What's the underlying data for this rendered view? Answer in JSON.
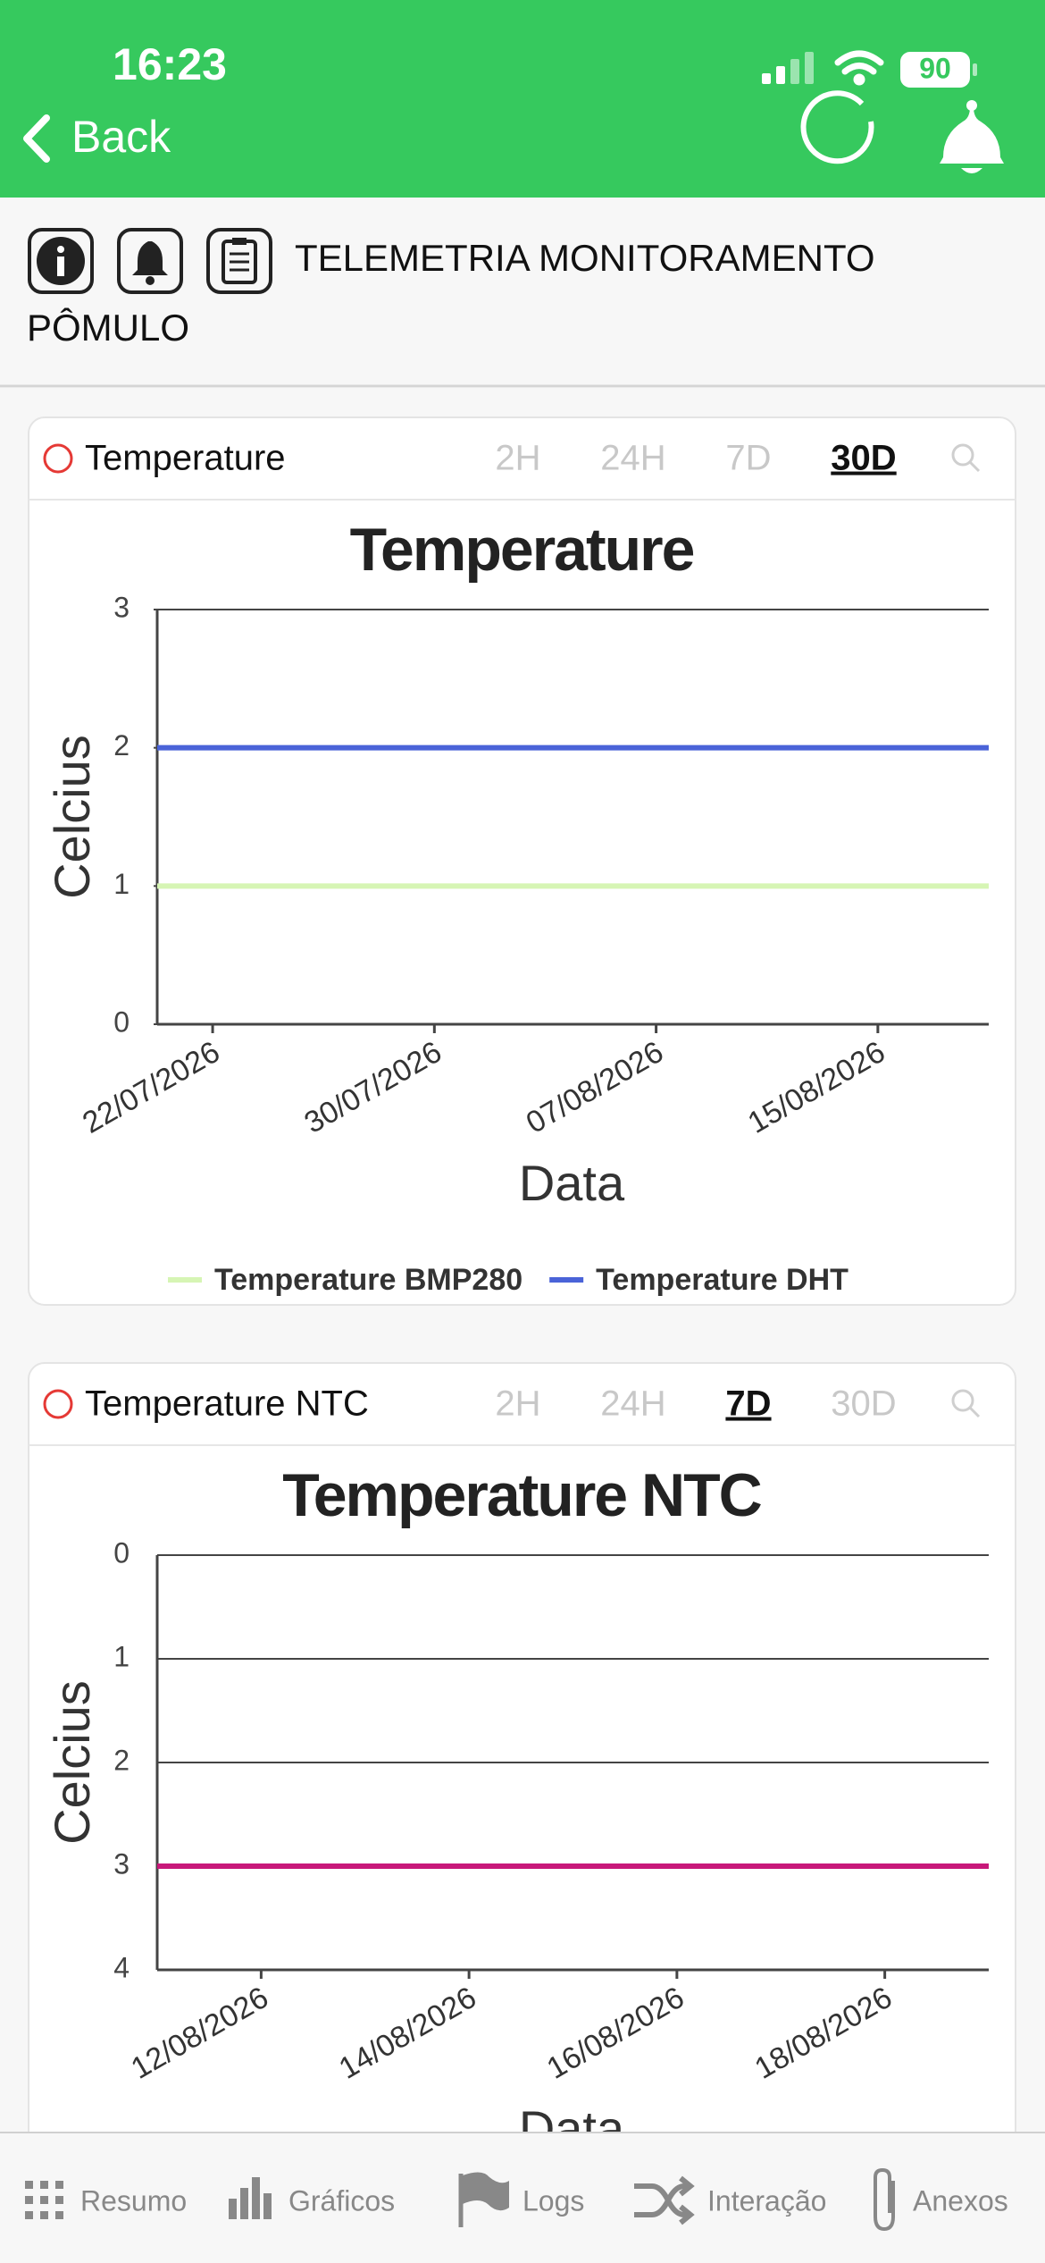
{
  "status_bar": {
    "time": "16:23",
    "battery": "90"
  },
  "nav": {
    "back": "Back"
  },
  "header": {
    "title": "TELEMETRIA MONITORAMENTO PÔMULO"
  },
  "cards": [
    {
      "label": "Temperature",
      "tabs": [
        "2H",
        "24H",
        "7D",
        "30D"
      ],
      "selected_tab": 3,
      "chart": {
        "type": "line",
        "title": "Temperature",
        "x_label": "Data",
        "y_label": "Celcius",
        "xlim": [
          "20/07/2026",
          "19/08/2026"
        ],
        "xticks": [
          "22/07/2026",
          "30/07/2026",
          "07/08/2026",
          "15/08/2026"
        ],
        "ylim": [
          0,
          3
        ],
        "yticks": [
          0,
          1,
          2,
          3
        ],
        "grid": false,
        "legend": "bottom",
        "series": [
          {
            "name": "Temperature BMP280",
            "color": "#d6f5b4",
            "x": [
              "20/07/2026",
              "19/08/2026"
            ],
            "values": [
              1,
              1
            ]
          },
          {
            "name": "Temperature DHT",
            "color": "#4a63d8",
            "x": [
              "20/07/2026",
              "19/08/2026"
            ],
            "values": [
              2,
              2
            ]
          }
        ]
      }
    },
    {
      "label": "Temperature NTC",
      "tabs": [
        "2H",
        "24H",
        "7D",
        "30D"
      ],
      "selected_tab": 2,
      "chart": {
        "type": "line",
        "title": "Temperature NTC",
        "x_label": "Data",
        "y_label": "Celcius",
        "xlim": [
          "11/08/2026",
          "19/08/2026"
        ],
        "xticks": [
          "12/08/2026",
          "14/08/2026",
          "16/08/2026",
          "18/08/2026"
        ],
        "ylim": [
          4,
          0
        ],
        "yticks": [
          0,
          1,
          2,
          3,
          4
        ],
        "grid": true,
        "series": [
          {
            "color": "#c8187a",
            "x": [
              "11/08/2026",
              "19/08/2026"
            ],
            "values": [
              3,
              3
            ]
          }
        ]
      }
    }
  ],
  "tab_bar": [
    "Resumo",
    "Gráficos",
    "Logs",
    "Interação",
    "Anexos"
  ]
}
